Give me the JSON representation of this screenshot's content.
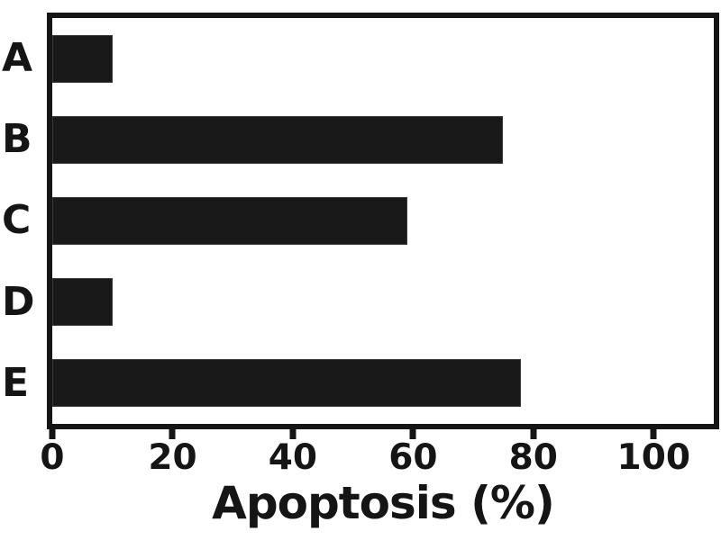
{
  "chart_data": {
    "type": "bar",
    "orientation": "horizontal",
    "categories": [
      "A",
      "B",
      "C",
      "D",
      "E"
    ],
    "values": [
      10,
      75,
      59,
      10,
      78
    ],
    "title": "",
    "xlabel": "Apoptosis (%)",
    "ylabel": "",
    "xlim": [
      0,
      110
    ],
    "xticks": [
      0,
      20,
      40,
      60,
      80,
      100
    ],
    "grid": false,
    "legend": false,
    "bar_color": "#191919",
    "axis_color": "#151515",
    "background": "#ffffff"
  }
}
